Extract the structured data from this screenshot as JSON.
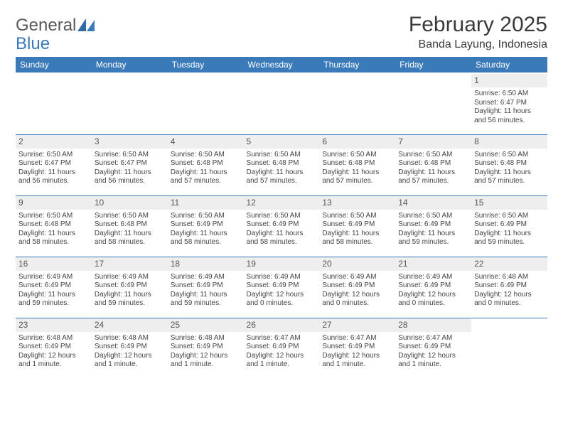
{
  "brand": {
    "part1": "General",
    "part2": "Blue"
  },
  "title": "February 2025",
  "location": "Banda Layung, Indonesia",
  "colors": {
    "header_bg": "#3b7ab8",
    "header_text": "#ffffff",
    "daynum_bg": "#eeeeee",
    "rule": "#3b7ab8",
    "text": "#444444",
    "title_text": "#3a3a3a",
    "logo_gray": "#595959",
    "logo_blue": "#3b7ab8",
    "page_bg": "#ffffff"
  },
  "dayHeaders": [
    "Sunday",
    "Monday",
    "Tuesday",
    "Wednesday",
    "Thursday",
    "Friday",
    "Saturday"
  ],
  "weeks": [
    [
      null,
      null,
      null,
      null,
      null,
      null,
      {
        "n": "1",
        "sr": "Sunrise: 6:50 AM",
        "ss": "Sunset: 6:47 PM",
        "d1": "Daylight: 11 hours",
        "d2": "and 56 minutes."
      }
    ],
    [
      {
        "n": "2",
        "sr": "Sunrise: 6:50 AM",
        "ss": "Sunset: 6:47 PM",
        "d1": "Daylight: 11 hours",
        "d2": "and 56 minutes."
      },
      {
        "n": "3",
        "sr": "Sunrise: 6:50 AM",
        "ss": "Sunset: 6:47 PM",
        "d1": "Daylight: 11 hours",
        "d2": "and 56 minutes."
      },
      {
        "n": "4",
        "sr": "Sunrise: 6:50 AM",
        "ss": "Sunset: 6:48 PM",
        "d1": "Daylight: 11 hours",
        "d2": "and 57 minutes."
      },
      {
        "n": "5",
        "sr": "Sunrise: 6:50 AM",
        "ss": "Sunset: 6:48 PM",
        "d1": "Daylight: 11 hours",
        "d2": "and 57 minutes."
      },
      {
        "n": "6",
        "sr": "Sunrise: 6:50 AM",
        "ss": "Sunset: 6:48 PM",
        "d1": "Daylight: 11 hours",
        "d2": "and 57 minutes."
      },
      {
        "n": "7",
        "sr": "Sunrise: 6:50 AM",
        "ss": "Sunset: 6:48 PM",
        "d1": "Daylight: 11 hours",
        "d2": "and 57 minutes."
      },
      {
        "n": "8",
        "sr": "Sunrise: 6:50 AM",
        "ss": "Sunset: 6:48 PM",
        "d1": "Daylight: 11 hours",
        "d2": "and 57 minutes."
      }
    ],
    [
      {
        "n": "9",
        "sr": "Sunrise: 6:50 AM",
        "ss": "Sunset: 6:48 PM",
        "d1": "Daylight: 11 hours",
        "d2": "and 58 minutes."
      },
      {
        "n": "10",
        "sr": "Sunrise: 6:50 AM",
        "ss": "Sunset: 6:48 PM",
        "d1": "Daylight: 11 hours",
        "d2": "and 58 minutes."
      },
      {
        "n": "11",
        "sr": "Sunrise: 6:50 AM",
        "ss": "Sunset: 6:49 PM",
        "d1": "Daylight: 11 hours",
        "d2": "and 58 minutes."
      },
      {
        "n": "12",
        "sr": "Sunrise: 6:50 AM",
        "ss": "Sunset: 6:49 PM",
        "d1": "Daylight: 11 hours",
        "d2": "and 58 minutes."
      },
      {
        "n": "13",
        "sr": "Sunrise: 6:50 AM",
        "ss": "Sunset: 6:49 PM",
        "d1": "Daylight: 11 hours",
        "d2": "and 58 minutes."
      },
      {
        "n": "14",
        "sr": "Sunrise: 6:50 AM",
        "ss": "Sunset: 6:49 PM",
        "d1": "Daylight: 11 hours",
        "d2": "and 59 minutes."
      },
      {
        "n": "15",
        "sr": "Sunrise: 6:50 AM",
        "ss": "Sunset: 6:49 PM",
        "d1": "Daylight: 11 hours",
        "d2": "and 59 minutes."
      }
    ],
    [
      {
        "n": "16",
        "sr": "Sunrise: 6:49 AM",
        "ss": "Sunset: 6:49 PM",
        "d1": "Daylight: 11 hours",
        "d2": "and 59 minutes."
      },
      {
        "n": "17",
        "sr": "Sunrise: 6:49 AM",
        "ss": "Sunset: 6:49 PM",
        "d1": "Daylight: 11 hours",
        "d2": "and 59 minutes."
      },
      {
        "n": "18",
        "sr": "Sunrise: 6:49 AM",
        "ss": "Sunset: 6:49 PM",
        "d1": "Daylight: 11 hours",
        "d2": "and 59 minutes."
      },
      {
        "n": "19",
        "sr": "Sunrise: 6:49 AM",
        "ss": "Sunset: 6:49 PM",
        "d1": "Daylight: 12 hours",
        "d2": "and 0 minutes."
      },
      {
        "n": "20",
        "sr": "Sunrise: 6:49 AM",
        "ss": "Sunset: 6:49 PM",
        "d1": "Daylight: 12 hours",
        "d2": "and 0 minutes."
      },
      {
        "n": "21",
        "sr": "Sunrise: 6:49 AM",
        "ss": "Sunset: 6:49 PM",
        "d1": "Daylight: 12 hours",
        "d2": "and 0 minutes."
      },
      {
        "n": "22",
        "sr": "Sunrise: 6:48 AM",
        "ss": "Sunset: 6:49 PM",
        "d1": "Daylight: 12 hours",
        "d2": "and 0 minutes."
      }
    ],
    [
      {
        "n": "23",
        "sr": "Sunrise: 6:48 AM",
        "ss": "Sunset: 6:49 PM",
        "d1": "Daylight: 12 hours",
        "d2": "and 1 minute."
      },
      {
        "n": "24",
        "sr": "Sunrise: 6:48 AM",
        "ss": "Sunset: 6:49 PM",
        "d1": "Daylight: 12 hours",
        "d2": "and 1 minute."
      },
      {
        "n": "25",
        "sr": "Sunrise: 6:48 AM",
        "ss": "Sunset: 6:49 PM",
        "d1": "Daylight: 12 hours",
        "d2": "and 1 minute."
      },
      {
        "n": "26",
        "sr": "Sunrise: 6:47 AM",
        "ss": "Sunset: 6:49 PM",
        "d1": "Daylight: 12 hours",
        "d2": "and 1 minute."
      },
      {
        "n": "27",
        "sr": "Sunrise: 6:47 AM",
        "ss": "Sunset: 6:49 PM",
        "d1": "Daylight: 12 hours",
        "d2": "and 1 minute."
      },
      {
        "n": "28",
        "sr": "Sunrise: 6:47 AM",
        "ss": "Sunset: 6:49 PM",
        "d1": "Daylight: 12 hours",
        "d2": "and 1 minute."
      },
      null
    ]
  ]
}
